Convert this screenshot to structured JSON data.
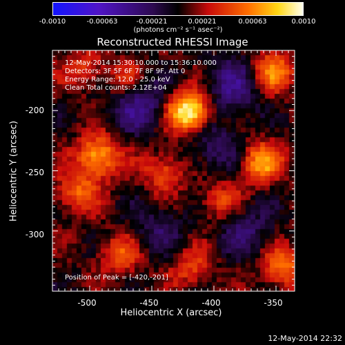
{
  "chart_data": {
    "type": "heatmap",
    "title": "Reconstructed RHESSI Image",
    "xlabel": "Heliocentric X (arcsec)",
    "ylabel": "Heliocentric Y (arcsec)",
    "xlim": [
      -530,
      -335
    ],
    "ylim": [
      -350,
      -150
    ],
    "x_ticks": [
      "-500",
      "-450",
      "-400",
      "-350"
    ],
    "x_tick_values": [
      -500,
      -450,
      -400,
      -350
    ],
    "y_ticks": [
      "-200",
      "-250",
      "-300"
    ],
    "y_tick_values": [
      -200,
      -250,
      -300
    ],
    "colorbar": {
      "ticks": [
        "-0.0010",
        "-0.00063",
        "-0.00021",
        "0.00021",
        "0.00063",
        "0.0010"
      ],
      "range": [
        -0.001,
        0.001
      ],
      "units": "(photons cm⁻² s⁻¹ asec⁻²)"
    },
    "annotations": [
      "12-May-2014 15:30:10.000 to 15:36:10.000",
      "Detectors: 3F 5F 6F 7F 8F 9F, Att 0",
      "Energy Range: 12.0 - 25.0 keV",
      "Clean   Total counts: 2.12E+04"
    ],
    "peak_label": "Position of Peak = [-420,-201]",
    "peak": [
      -420,
      -201
    ],
    "sources": [
      {
        "x": -420,
        "y": -201,
        "value": 0.001
      },
      {
        "x": -493,
        "y": -238,
        "value": 0.00068
      },
      {
        "x": -362,
        "y": -243,
        "value": 0.00062
      },
      {
        "x": -352,
        "y": -168,
        "value": 0.00055
      },
      {
        "x": -510,
        "y": -268,
        "value": 0.00045
      },
      {
        "x": -475,
        "y": -320,
        "value": 0.0004
      },
      {
        "x": -418,
        "y": -330,
        "value": 0.00035
      },
      {
        "x": -345,
        "y": -330,
        "value": 0.0005
      },
      {
        "x": -470,
        "y": -175,
        "value": 0.0003
      },
      {
        "x": -440,
        "y": -250,
        "value": 0.0004
      },
      {
        "x": -395,
        "y": -275,
        "value": 0.00035
      },
      {
        "x": -505,
        "y": -165,
        "value": 0.0003
      }
    ],
    "negative_regions": [
      {
        "x": -460,
        "y": -195,
        "value": -0.00045
      },
      {
        "x": -385,
        "y": -180,
        "value": -0.0004
      },
      {
        "x": -400,
        "y": -230,
        "value": -0.0003
      },
      {
        "x": -375,
        "y": -300,
        "value": -0.0003
      },
      {
        "x": -445,
        "y": -300,
        "value": -0.00025
      }
    ]
  },
  "footer": {
    "timestamp": "12-May-2014 22:32"
  }
}
